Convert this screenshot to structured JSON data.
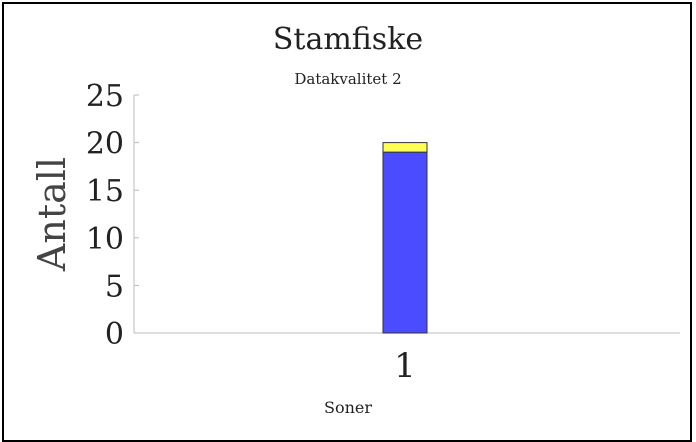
{
  "chart_data": {
    "type": "bar",
    "stacked": true,
    "title": "Stamfiske",
    "subtitle": "Datakvalitet 2",
    "xlabel": "Soner",
    "ylabel": "Antall",
    "categories": [
      "1"
    ],
    "ylim": [
      0,
      25
    ],
    "yticks": [
      0,
      5,
      10,
      15,
      20,
      25
    ],
    "grid": false,
    "series": [
      {
        "values": [
          19
        ],
        "color": "#4b4bff"
      },
      {
        "values": [
          1
        ],
        "color": "#ffff55"
      }
    ]
  }
}
